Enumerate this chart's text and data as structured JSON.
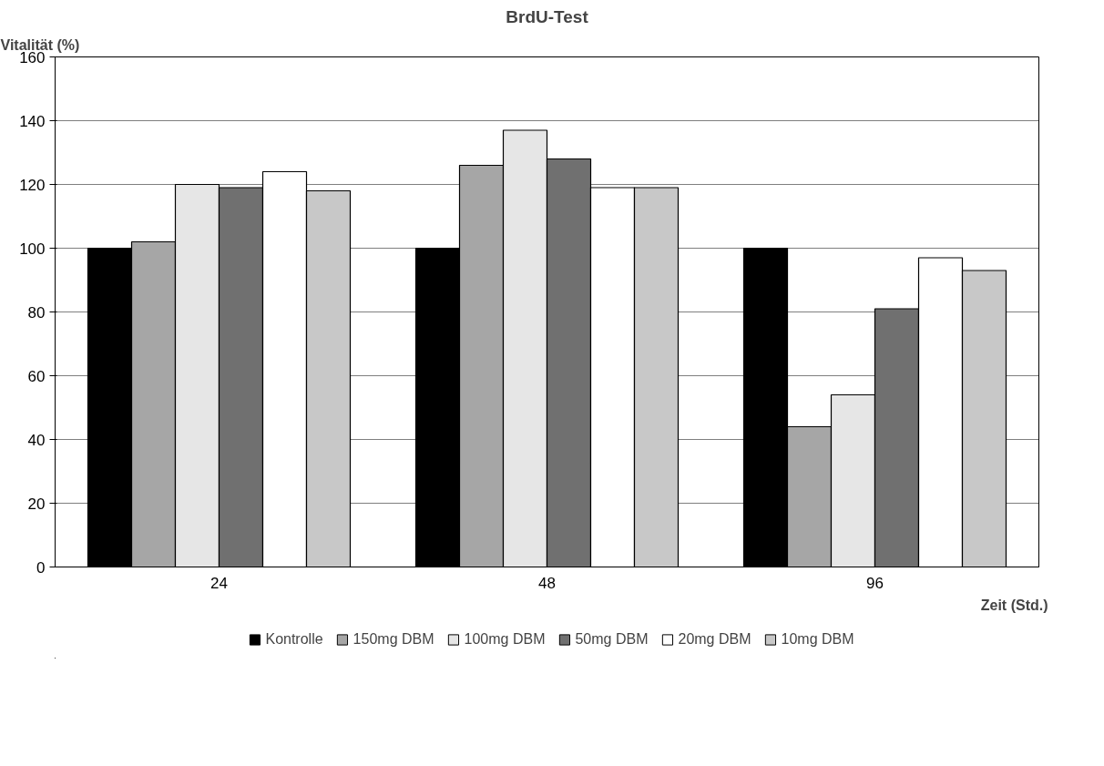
{
  "chart_data": {
    "type": "bar",
    "title": "BrdU-Test",
    "ylabel": "Vitalität (%)",
    "xlabel": "Zeit (Std.)",
    "categories": [
      "24",
      "48",
      "96"
    ],
    "series": [
      {
        "name": "Kontrolle",
        "color": "#000000",
        "values": [
          100,
          100,
          100
        ]
      },
      {
        "name": "150mg DBM",
        "color": "#a6a6a6",
        "values": [
          102,
          126,
          44
        ]
      },
      {
        "name": "100mg DBM",
        "color": "#e6e6e6",
        "values": [
          120,
          137,
          54
        ]
      },
      {
        "name": "50mg DBM",
        "color": "#707070",
        "values": [
          119,
          128,
          81
        ]
      },
      {
        "name": "20mg DBM",
        "color": "#ffffff",
        "values": [
          124,
          119,
          97
        ]
      },
      {
        "name": "10mg DBM",
        "color": "#c8c8c8",
        "values": [
          118,
          119,
          93
        ]
      }
    ],
    "ylim": [
      0,
      160
    ],
    "yticks": [
      0,
      20,
      40,
      60,
      80,
      100,
      120,
      140,
      160
    ],
    "grid": "y",
    "legend": "bottom"
  }
}
